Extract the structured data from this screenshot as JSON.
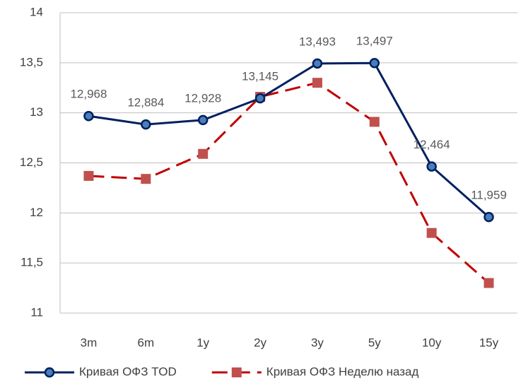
{
  "chart_data": {
    "type": "line",
    "categories": [
      "3m",
      "6m",
      "1y",
      "2y",
      "3y",
      "5y",
      "10y",
      "15y"
    ],
    "series": [
      {
        "name": "Кривая ОФЗ TOD",
        "color": "#002060",
        "marker": "circle",
        "marker_fill": "#4a7ebb",
        "line_style": "solid",
        "values": [
          12.968,
          12.884,
          12.928,
          13.145,
          13.493,
          13.497,
          12.464,
          11.959
        ],
        "value_labels": [
          "12,968",
          "12,884",
          "12,928",
          "13,145",
          "13,493",
          "13,497",
          "12,464",
          "11,959"
        ]
      },
      {
        "name": "Кривая ОФЗ Неделю назад",
        "color": "#c00000",
        "marker": "square",
        "marker_fill": "#c0504d",
        "line_style": "dashed",
        "values": [
          12.37,
          12.34,
          12.59,
          13.16,
          13.3,
          12.91,
          11.8,
          11.3
        ]
      }
    ],
    "ylim": [
      11,
      14
    ],
    "yticks": [
      11,
      {
        "value": 11.5,
        "label": "11,5"
      },
      12,
      {
        "value": 12.5,
        "label": "12,5"
      },
      13,
      {
        "value": 13.5,
        "label": "13,5"
      },
      14
    ],
    "grid": true,
    "legend": "bottom"
  }
}
